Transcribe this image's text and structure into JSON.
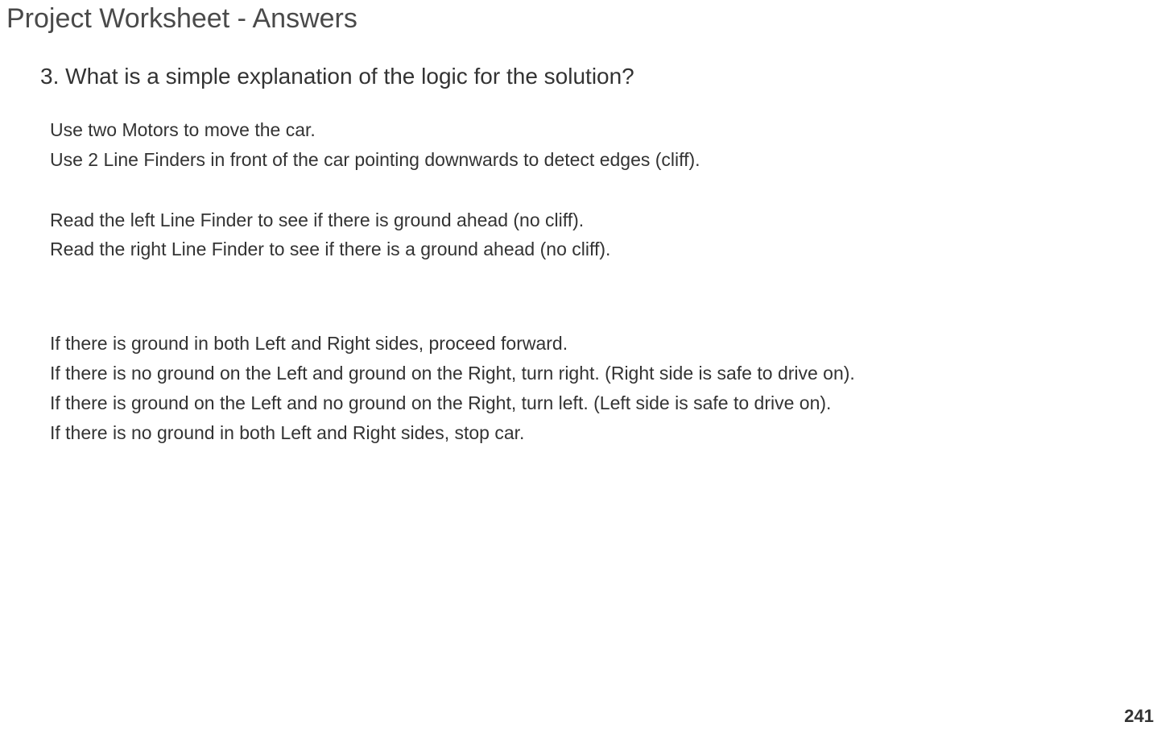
{
  "header": {
    "title": "Project Worksheet - Answers"
  },
  "question": {
    "number": "3.",
    "text": "What is a simple explanation of the logic for the solution?"
  },
  "answer": {
    "lines": [
      "Use two Motors to move the car.",
      "Use 2 Line Finders in front of the car pointing downwards to detect edges (cliff).",
      "",
      "Read the left Line Finder to see if there is ground ahead (no cliff).",
      "Read the right Line Finder to see if there is a ground ahead (no cliff).",
      "",
      "",
      "If there is ground in both Left and Right sides, proceed forward.",
      "If there is no ground on the Left and ground on the Right, turn right. (Right side is safe to drive on).",
      "If there is ground on the Left and no ground on the Right, turn left. (Left side is safe to drive on).",
      "If there is no ground in both Left and Right sides, stop car."
    ]
  },
  "footer": {
    "page_number": "241"
  },
  "colors": {
    "background": "#ffffff",
    "title_color": "#4a4a4a",
    "text_color": "#333333"
  },
  "typography": {
    "title_fontsize": 34,
    "question_fontsize": 28,
    "body_fontsize": 23,
    "pagenum_fontsize": 22
  }
}
